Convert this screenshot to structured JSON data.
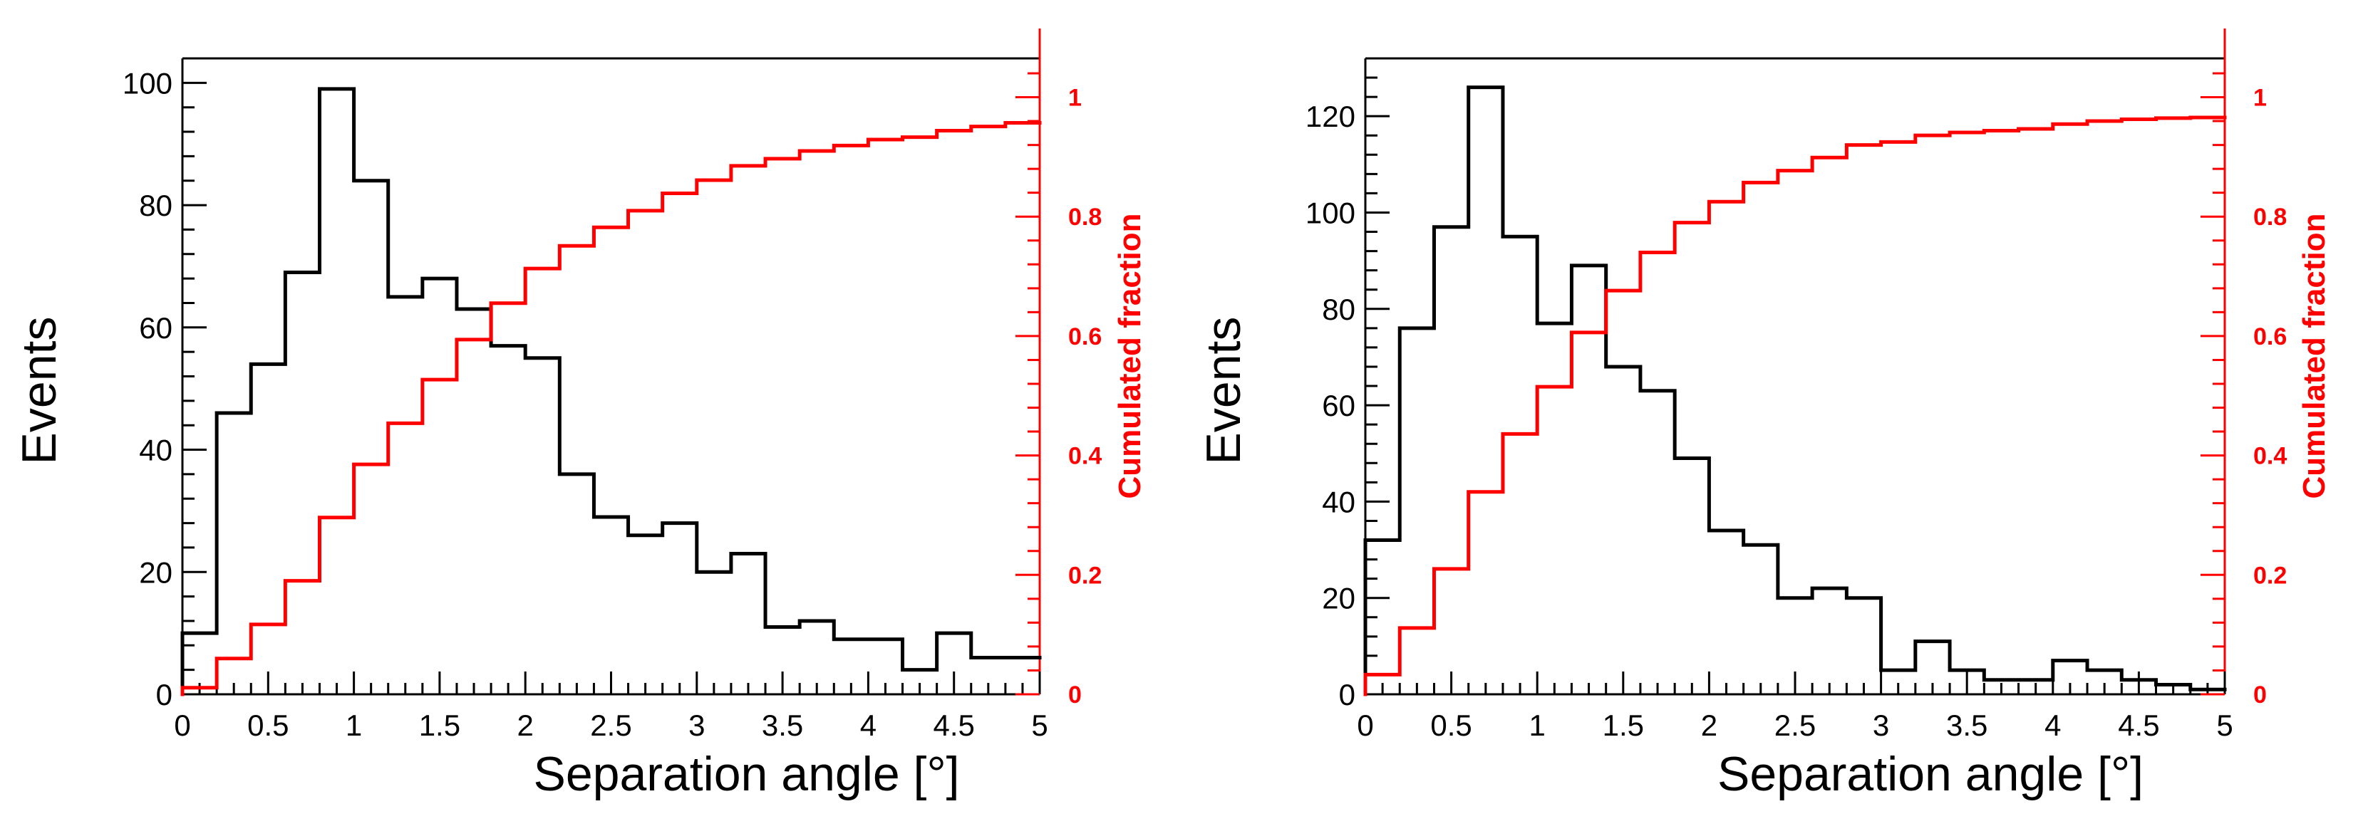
{
  "chart_data": [
    {
      "type": "histogram",
      "xlabel": "Separation angle [°]",
      "ylabel": "Events",
      "ylabel_right": "Cumulated fraction",
      "xlim": [
        0,
        5
      ],
      "ylim": [
        0,
        104
      ],
      "ylim_right": [
        0,
        1.065
      ],
      "x_ticks": [
        0,
        0.5,
        1,
        1.5,
        2,
        2.5,
        3,
        3.5,
        4,
        4.5,
        5
      ],
      "x_tick_labels": [
        "0",
        "0.5",
        "1",
        "1.5",
        "2",
        "2.5",
        "3",
        "3.5",
        "4",
        "4.5",
        "5"
      ],
      "y_ticks": [
        0,
        20,
        40,
        60,
        80,
        100
      ],
      "y_tick_labels": [
        "0",
        "20",
        "40",
        "60",
        "80",
        "100"
      ],
      "y_ticks_right": [
        0,
        0.2,
        0.4,
        0.6,
        0.8,
        1
      ],
      "y_tick_labels_right": [
        "0",
        "0.2",
        "0.4",
        "0.6",
        "0.8",
        "1"
      ],
      "bin_edges": [
        0,
        0.2,
        0.4,
        0.6,
        0.8,
        1.0,
        1.2,
        1.4,
        1.6,
        1.8,
        2.0,
        2.2,
        2.4,
        2.6,
        2.8,
        3.0,
        3.2,
        3.4,
        3.6,
        3.8,
        4.0,
        4.2,
        4.4,
        4.6,
        4.8,
        5.0
      ],
      "series": [
        {
          "name": "Events",
          "axis": "left",
          "color": "#000000",
          "values": [
            10,
            46,
            54,
            69,
            99,
            84,
            65,
            68,
            63,
            57,
            55,
            36,
            29,
            26,
            28,
            20,
            23,
            11,
            12,
            9,
            9,
            4,
            10,
            6,
            6
          ]
        },
        {
          "name": "Cumulated fraction",
          "axis": "right",
          "color": "#ff0000",
          "values": [
            0.011,
            0.06,
            0.117,
            0.19,
            0.296,
            0.385,
            0.454,
            0.527,
            0.594,
            0.655,
            0.713,
            0.751,
            0.782,
            0.81,
            0.839,
            0.861,
            0.885,
            0.897,
            0.91,
            0.919,
            0.929,
            0.933,
            0.944,
            0.951,
            0.957
          ]
        }
      ]
    },
    {
      "type": "histogram",
      "xlabel": "Separation angle [°]",
      "ylabel": "Events",
      "ylabel_right": "Cumulated fraction",
      "xlim": [
        0,
        5
      ],
      "ylim": [
        0,
        132
      ],
      "ylim_right": [
        0,
        1.065
      ],
      "x_ticks": [
        0,
        0.5,
        1,
        1.5,
        2,
        2.5,
        3,
        3.5,
        4,
        4.5,
        5
      ],
      "x_tick_labels": [
        "0",
        "0.5",
        "1",
        "1.5",
        "2",
        "2.5",
        "3",
        "3.5",
        "4",
        "4.5",
        "5"
      ],
      "y_ticks": [
        0,
        20,
        40,
        60,
        80,
        100,
        120
      ],
      "y_tick_labels": [
        "0",
        "20",
        "40",
        "60",
        "80",
        "100",
        "120"
      ],
      "y_ticks_right": [
        0,
        0.2,
        0.4,
        0.6,
        0.8,
        1
      ],
      "y_tick_labels_right": [
        "0",
        "0.2",
        "0.4",
        "0.6",
        "0.8",
        "1"
      ],
      "bin_edges": [
        0,
        0.2,
        0.4,
        0.6,
        0.8,
        1.0,
        1.2,
        1.4,
        1.6,
        1.8,
        2.0,
        2.2,
        2.4,
        2.6,
        2.8,
        3.0,
        3.2,
        3.4,
        3.6,
        3.8,
        4.0,
        4.2,
        4.4,
        4.6,
        4.8,
        5.0
      ],
      "series": [
        {
          "name": "Events",
          "axis": "left",
          "color": "#000000",
          "values": [
            32,
            76,
            97,
            126,
            95,
            77,
            89,
            68,
            63,
            49,
            34,
            31,
            20,
            22,
            20,
            5,
            11,
            5,
            3,
            3,
            7,
            5,
            3,
            2,
            1
          ]
        },
        {
          "name": "Cumulated fraction",
          "axis": "right",
          "color": "#ff0000",
          "values": [
            0.033,
            0.111,
            0.21,
            0.339,
            0.436,
            0.515,
            0.606,
            0.676,
            0.74,
            0.79,
            0.825,
            0.857,
            0.877,
            0.899,
            0.92,
            0.925,
            0.936,
            0.941,
            0.944,
            0.947,
            0.955,
            0.96,
            0.963,
            0.965,
            0.966
          ]
        }
      ]
    }
  ]
}
